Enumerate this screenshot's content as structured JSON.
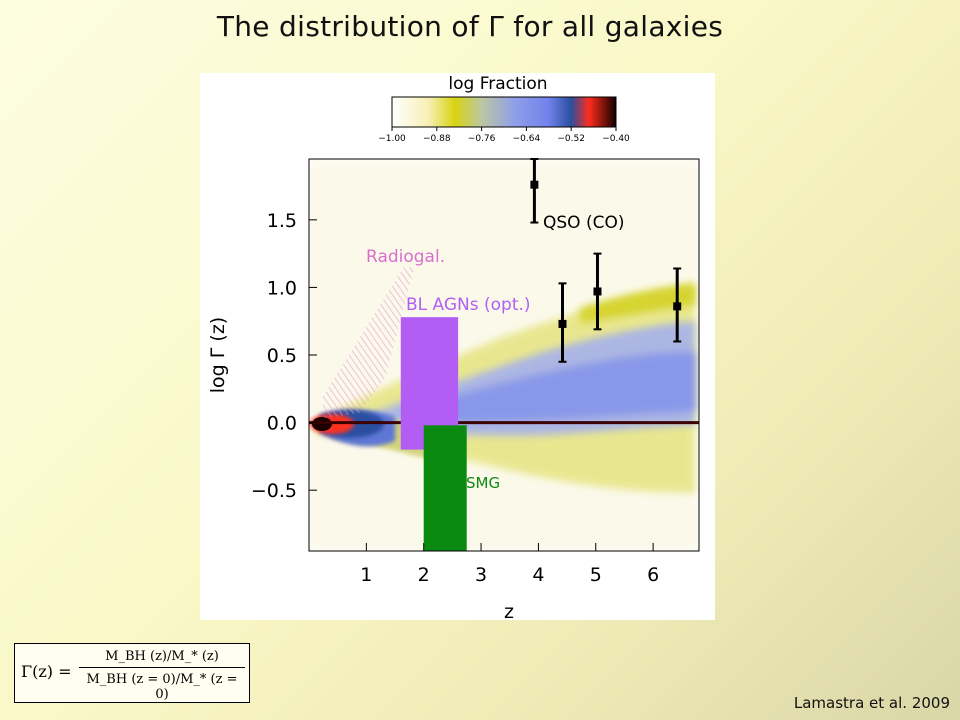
{
  "slide": {
    "title": "The distribution of Γ for all galaxies",
    "credit": "Lamastra et al. 2009"
  },
  "formula": {
    "lhs": "Γ(z) =",
    "numerator": "M_BH (z)/M_* (z)",
    "denominator": "M_BH (z = 0)/M_* (z = 0)"
  },
  "colors": {
    "background": "#faf8c7",
    "radiogal": "#d970cf",
    "bl_agn": "#b25ef4",
    "smg": "#0b8a12",
    "qso": "#000000",
    "median_line": "#3b0000"
  },
  "chart_data": {
    "type": "heatmap",
    "title": "",
    "xlabel": "z",
    "ylabel": "log Γ (z)",
    "xlim": [
      0,
      6.8
    ],
    "ylim": [
      -0.95,
      1.95
    ],
    "xticks": [
      1,
      2,
      3,
      4,
      5,
      6
    ],
    "yticks": [
      1.5,
      1.0,
      0.5,
      0.0,
      -0.5
    ],
    "ytick_labels": [
      "1.5",
      "1.0",
      "0.5",
      "0.0",
      "−0.5"
    ],
    "grid": false,
    "colorbar": {
      "label": "log Fraction",
      "ticks": [
        "−1.00",
        "−0.88",
        "−0.76",
        "−0.64",
        "−0.52",
        "−0.40"
      ],
      "range": [
        -1.0,
        -0.4
      ],
      "position": "top"
    },
    "median_line": {
      "y": 0.0
    },
    "annotations": [
      {
        "text": "Radiogal.",
        "z_range": [
          0.2,
          1.6
        ],
        "logGamma_range": [
          0.2,
          1.15
        ]
      },
      {
        "text": "BL AGNs (opt.)",
        "z_range": [
          1.6,
          2.6
        ],
        "logGamma_range": [
          -0.2,
          0.78
        ]
      },
      {
        "text": "SMG",
        "z_range": [
          2.0,
          2.75
        ],
        "logGamma_range": [
          -0.95,
          -0.02
        ]
      },
      {
        "text": "QSO (CO)"
      }
    ],
    "series": [
      {
        "name": "QSO (CO)",
        "type": "errorbar",
        "points": [
          {
            "x": 3.93,
            "y": 1.76,
            "ylow": 1.48,
            "yhigh": 1.95
          },
          {
            "x": 4.42,
            "y": 0.73,
            "ylow": 0.45,
            "yhigh": 1.03
          },
          {
            "x": 5.03,
            "y": 0.97,
            "ylow": 0.69,
            "yhigh": 1.25
          },
          {
            "x": 6.42,
            "y": 0.86,
            "ylow": 0.6,
            "yhigh": 1.14
          }
        ]
      }
    ]
  }
}
